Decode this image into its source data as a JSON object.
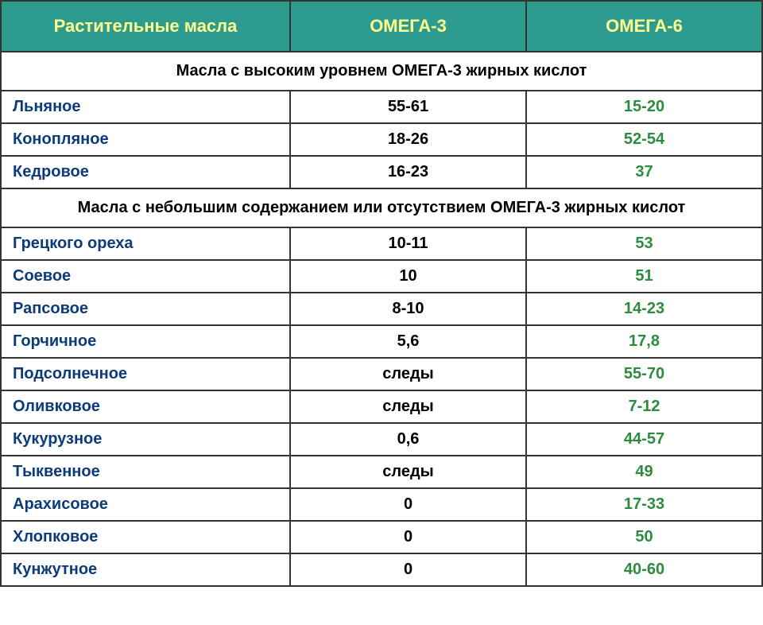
{
  "table": {
    "headers": {
      "name": "Растительные масла",
      "omega3": "ОМЕГА-3",
      "omega6": "ОМЕГА-6"
    },
    "header_bg_color": "#2d9b8e",
    "header_text_color": "#fffe8f",
    "border_color": "#333333",
    "name_text_color": "#0b3b78",
    "omega3_text_color": "#000000",
    "omega6_text_color": "#2d8b3f",
    "section_text_color": "#000000",
    "header_fontsize": 22,
    "section_fontsize": 20,
    "cell_fontsize": 20,
    "column_widths": [
      "38%",
      "31%",
      "31%"
    ],
    "sections": [
      {
        "title": "Масла с высоким уровнем ОМЕГА-3 жирных кислот",
        "rows": [
          {
            "name": "Льняное",
            "omega3": "55-61",
            "omega6": "15-20"
          },
          {
            "name": "Конопляное",
            "omega3": "18-26",
            "omega6": "52-54"
          },
          {
            "name": "Кедровое",
            "omega3": "16-23",
            "omega6": "37"
          }
        ]
      },
      {
        "title": "Масла с небольшим содержанием или отсутствием ОМЕГА-3 жирных кислот",
        "rows": [
          {
            "name": "Грецкого ореха",
            "omega3": "10-11",
            "omega6": "53"
          },
          {
            "name": "Соевое",
            "omega3": "10",
            "omega6": "51"
          },
          {
            "name": "Рапсовое",
            "omega3": "8-10",
            "omega6": "14-23"
          },
          {
            "name": "Горчичное",
            "omega3": "5,6",
            "omega6": "17,8"
          },
          {
            "name": "Подсолнечное",
            "omega3": "следы",
            "omega6": "55-70"
          },
          {
            "name": "Оливковое",
            "omega3": "следы",
            "omega6": "7-12"
          },
          {
            "name": "Кукурузное",
            "omega3": "0,6",
            "omega6": "44-57"
          },
          {
            "name": "Тыквенное",
            "omega3": "следы",
            "omega6": "49"
          },
          {
            "name": "Арахисовое",
            "omega3": "0",
            "omega6": "17-33"
          },
          {
            "name": "Хлопковое",
            "omega3": "0",
            "omega6": "50"
          },
          {
            "name": "Кунжутное",
            "omega3": "0",
            "omega6": "40-60"
          }
        ]
      }
    ]
  }
}
